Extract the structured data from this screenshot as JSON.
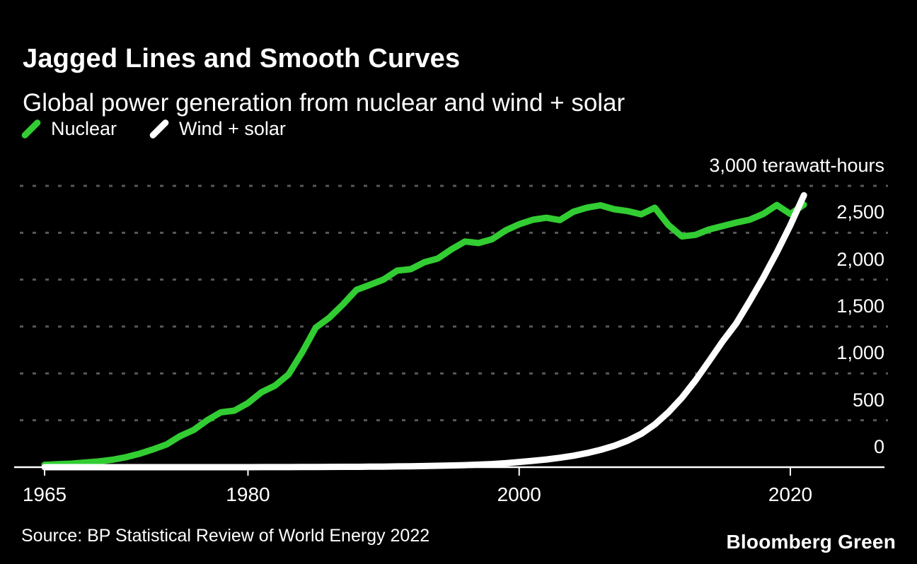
{
  "chart_data": {
    "type": "line",
    "title": "Jagged Lines and Smooth Curves",
    "subtitle": "Global power generation from nuclear and wind + solar",
    "unit": "terawatt-hours",
    "years": [
      1965,
      1966,
      1967,
      1968,
      1969,
      1970,
      1971,
      1972,
      1973,
      1974,
      1975,
      1976,
      1977,
      1978,
      1979,
      1980,
      1981,
      1982,
      1983,
      1984,
      1985,
      1986,
      1987,
      1988,
      1989,
      1990,
      1991,
      1992,
      1993,
      1994,
      1995,
      1996,
      1997,
      1998,
      1999,
      2000,
      2001,
      2002,
      2003,
      2004,
      2005,
      2006,
      2007,
      2008,
      2009,
      2010,
      2011,
      2012,
      2013,
      2014,
      2015,
      2016,
      2017,
      2018,
      2019,
      2020,
      2021
    ],
    "series": [
      {
        "name": "Nuclear",
        "color": "#32cd32",
        "values": [
          26,
          32,
          38,
          50,
          62,
          79,
          106,
          143,
          190,
          243,
          332,
          397,
          501,
          585,
          603,
          684,
          800,
          870,
          990,
          1225,
          1489,
          1594,
          1735,
          1891,
          1945,
          2001,
          2096,
          2111,
          2185,
          2225,
          2322,
          2407,
          2390,
          2431,
          2525,
          2591,
          2638,
          2660,
          2635,
          2724,
          2768,
          2793,
          2751,
          2731,
          2697,
          2767,
          2584,
          2461,
          2478,
          2535,
          2571,
          2608,
          2639,
          2701,
          2796,
          2700,
          2800
        ]
      },
      {
        "name": "Wind + solar",
        "color": "#ffffff",
        "values": [
          0,
          0,
          0,
          0,
          0,
          0,
          0,
          0,
          0,
          0,
          0,
          0,
          0,
          0,
          0,
          0,
          1,
          1,
          1,
          2,
          2,
          3,
          4,
          4,
          5,
          6,
          8,
          10,
          12,
          15,
          18,
          22,
          27,
          33,
          42,
          55,
          68,
          82,
          100,
          122,
          150,
          185,
          228,
          283,
          355,
          455,
          585,
          740,
          925,
          1130,
          1340,
          1530,
          1770,
          2020,
          2290,
          2580,
          2900
        ]
      }
    ],
    "ylim": [
      0,
      3000
    ],
    "yticks": [
      0,
      500,
      1000,
      1500,
      2000,
      2500,
      3000
    ],
    "ytick_labels": [
      "0",
      "500",
      "1,000",
      "1,500",
      "2,000",
      "2,500",
      "3,000 terawatt-hours"
    ],
    "xticks": [
      1965,
      1980,
      2000,
      2020
    ],
    "xtick_labels": [
      "1965",
      "1980",
      "2000",
      "2020"
    ],
    "grid": "horizontal-dashed",
    "legend_position": "top-left"
  },
  "footer": {
    "source": "Source: BP Statistical Review of World Energy 2022",
    "brand": "Bloomberg Green"
  },
  "colors": {
    "background": "#000000",
    "text": "#ffffff",
    "grid": "#585858",
    "axis": "#ffffff"
  }
}
